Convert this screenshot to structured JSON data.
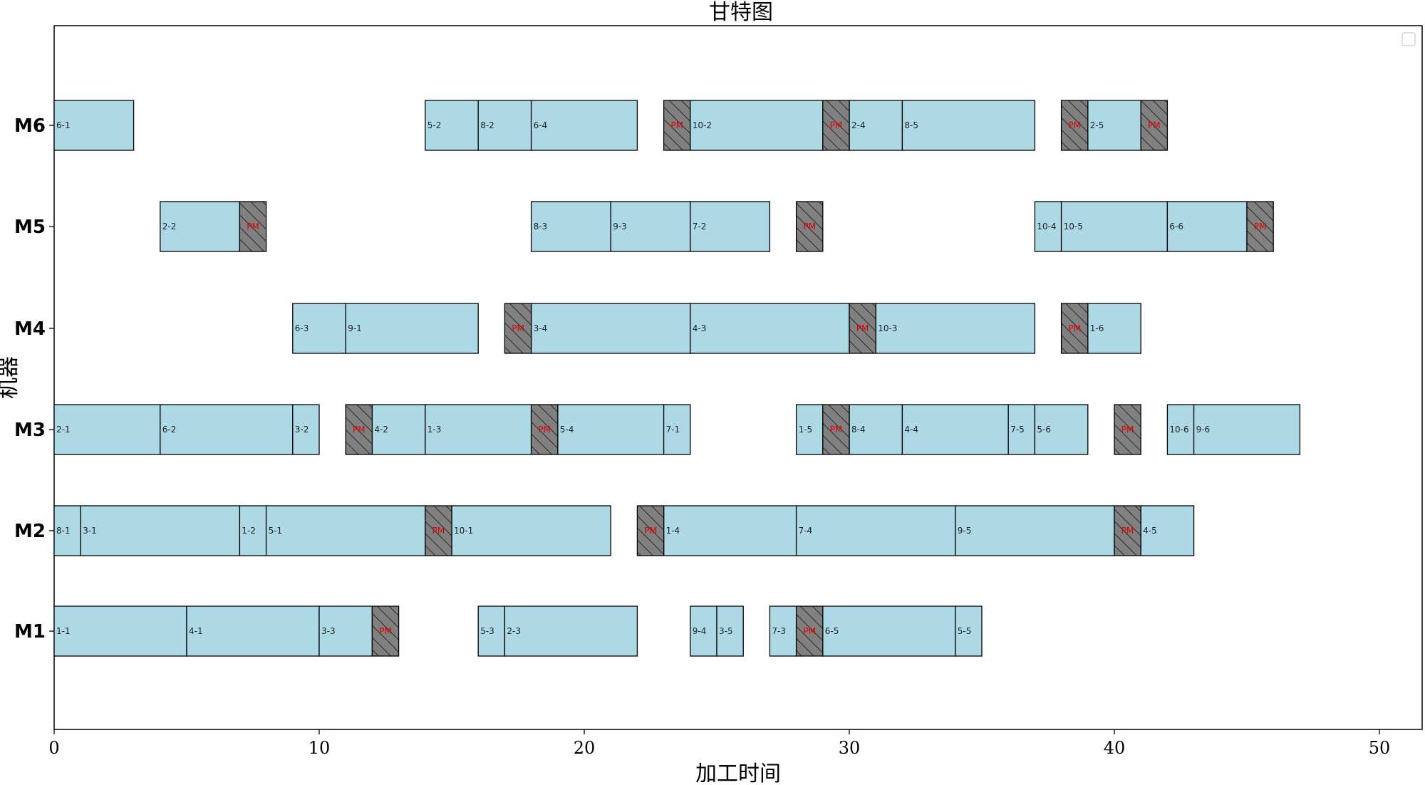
{
  "chart_data": {
    "type": "gantt",
    "title": "甘特图",
    "xlabel": "加工时间",
    "ylabel": "机器",
    "xlim": [
      0,
      52
    ],
    "xticks": [
      0,
      10,
      20,
      30,
      40,
      50
    ],
    "machines": [
      "M1",
      "M2",
      "M3",
      "M4",
      "M5",
      "M6"
    ],
    "legend": "top-right, empty",
    "colors": {
      "operation": "#add8e6",
      "maintenance": "#808080",
      "edge": "#000000",
      "maintenance_label": "#e00000"
    },
    "operations": [
      {
        "machine": "M1",
        "label": "1-1",
        "start": 0,
        "end": 5
      },
      {
        "machine": "M1",
        "label": "4-1",
        "start": 5,
        "end": 10
      },
      {
        "machine": "M1",
        "label": "3-3",
        "start": 10,
        "end": 12
      },
      {
        "machine": "M1",
        "label": "5-3",
        "start": 16,
        "end": 17
      },
      {
        "machine": "M1",
        "label": "2-3",
        "start": 17,
        "end": 22
      },
      {
        "machine": "M1",
        "label": "9-4",
        "start": 24,
        "end": 25
      },
      {
        "machine": "M1",
        "label": "3-5",
        "start": 25,
        "end": 26
      },
      {
        "machine": "M1",
        "label": "7-3",
        "start": 27,
        "end": 28
      },
      {
        "machine": "M1",
        "label": "6-5",
        "start": 29,
        "end": 34
      },
      {
        "machine": "M1",
        "label": "5-5",
        "start": 34,
        "end": 35
      },
      {
        "machine": "M2",
        "label": "8-1",
        "start": 0,
        "end": 1
      },
      {
        "machine": "M2",
        "label": "3-1",
        "start": 1,
        "end": 7
      },
      {
        "machine": "M2",
        "label": "1-2",
        "start": 7,
        "end": 8
      },
      {
        "machine": "M2",
        "label": "5-1",
        "start": 8,
        "end": 14
      },
      {
        "machine": "M2",
        "label": "10-1",
        "start": 15,
        "end": 21
      },
      {
        "machine": "M2",
        "label": "1-4",
        "start": 23,
        "end": 28
      },
      {
        "machine": "M2",
        "label": "7-4",
        "start": 28,
        "end": 34
      },
      {
        "machine": "M2",
        "label": "9-5",
        "start": 34,
        "end": 40
      },
      {
        "machine": "M2",
        "label": "4-5",
        "start": 41,
        "end": 43
      },
      {
        "machine": "M3",
        "label": "2-1",
        "start": 0,
        "end": 4
      },
      {
        "machine": "M3",
        "label": "6-2",
        "start": 4,
        "end": 9
      },
      {
        "machine": "M3",
        "label": "3-2",
        "start": 9,
        "end": 10
      },
      {
        "machine": "M3",
        "label": "4-2",
        "start": 12,
        "end": 14
      },
      {
        "machine": "M3",
        "label": "1-3",
        "start": 14,
        "end": 18
      },
      {
        "machine": "M3",
        "label": "5-4",
        "start": 19,
        "end": 23
      },
      {
        "machine": "M3",
        "label": "7-1",
        "start": 23,
        "end": 24
      },
      {
        "machine": "M3",
        "label": "1-5",
        "start": 28,
        "end": 29
      },
      {
        "machine": "M3",
        "label": "8-4",
        "start": 30,
        "end": 32
      },
      {
        "machine": "M3",
        "label": "4-4",
        "start": 32,
        "end": 36
      },
      {
        "machine": "M3",
        "label": "7-5",
        "start": 36,
        "end": 37
      },
      {
        "machine": "M3",
        "label": "5-6",
        "start": 37,
        "end": 39
      },
      {
        "machine": "M3",
        "label": "10-6",
        "start": 42,
        "end": 43
      },
      {
        "machine": "M3",
        "label": "9-6",
        "start": 43,
        "end": 47
      },
      {
        "machine": "M4",
        "label": "6-3",
        "start": 9,
        "end": 11
      },
      {
        "machine": "M4",
        "label": "9-1",
        "start": 11,
        "end": 16
      },
      {
        "machine": "M4",
        "label": "3-4",
        "start": 18,
        "end": 24
      },
      {
        "machine": "M4",
        "label": "4-3",
        "start": 24,
        "end": 30
      },
      {
        "machine": "M4",
        "label": "10-3",
        "start": 31,
        "end": 37
      },
      {
        "machine": "M4",
        "label": "1-6",
        "start": 39,
        "end": 41
      },
      {
        "machine": "M5",
        "label": "2-2",
        "start": 4,
        "end": 7
      },
      {
        "machine": "M5",
        "label": "8-3",
        "start": 18,
        "end": 21
      },
      {
        "machine": "M5",
        "label": "9-3",
        "start": 21,
        "end": 24
      },
      {
        "machine": "M5",
        "label": "7-2",
        "start": 24,
        "end": 27
      },
      {
        "machine": "M5",
        "label": "10-4",
        "start": 37,
        "end": 38
      },
      {
        "machine": "M5",
        "label": "10-5",
        "start": 38,
        "end": 42
      },
      {
        "machine": "M5",
        "label": "6-6",
        "start": 42,
        "end": 45
      },
      {
        "machine": "M6",
        "label": "6-1",
        "start": 0,
        "end": 3
      },
      {
        "machine": "M6",
        "label": "5-2",
        "start": 14,
        "end": 16
      },
      {
        "machine": "M6",
        "label": "8-2",
        "start": 16,
        "end": 18
      },
      {
        "machine": "M6",
        "label": "6-4",
        "start": 18,
        "end": 22
      },
      {
        "machine": "M6",
        "label": "10-2",
        "start": 24,
        "end": 29
      },
      {
        "machine": "M6",
        "label": "2-4",
        "start": 30,
        "end": 32
      },
      {
        "machine": "M6",
        "label": "8-5",
        "start": 32,
        "end": 37
      },
      {
        "machine": "M6",
        "label": "2-5",
        "start": 39,
        "end": 41
      }
    ],
    "maintenance": [
      {
        "machine": "M1",
        "start": 12,
        "end": 13,
        "label": "PM"
      },
      {
        "machine": "M1",
        "start": 28,
        "end": 29,
        "label": "PM"
      },
      {
        "machine": "M2",
        "start": 14,
        "end": 15,
        "label": "PM"
      },
      {
        "machine": "M2",
        "start": 22,
        "end": 23,
        "label": "PM"
      },
      {
        "machine": "M2",
        "start": 40,
        "end": 41,
        "label": "PM"
      },
      {
        "machine": "M3",
        "start": 11,
        "end": 12,
        "label": "PM"
      },
      {
        "machine": "M3",
        "start": 18,
        "end": 19,
        "label": "PM"
      },
      {
        "machine": "M3",
        "start": 29,
        "end": 30,
        "label": "PM"
      },
      {
        "machine": "M3",
        "start": 40,
        "end": 41,
        "label": "PM"
      },
      {
        "machine": "M4",
        "start": 17,
        "end": 18,
        "label": "PM"
      },
      {
        "machine": "M4",
        "start": 30,
        "end": 31,
        "label": "PM"
      },
      {
        "machine": "M4",
        "start": 38,
        "end": 39,
        "label": "PM"
      },
      {
        "machine": "M5",
        "start": 7,
        "end": 8,
        "label": "PM"
      },
      {
        "machine": "M5",
        "start": 28,
        "end": 29,
        "label": "PM"
      },
      {
        "machine": "M5",
        "start": 45,
        "end": 46,
        "label": "PM"
      },
      {
        "machine": "M6",
        "start": 23,
        "end": 24,
        "label": "PM"
      },
      {
        "machine": "M6",
        "start": 29,
        "end": 30,
        "label": "PM"
      },
      {
        "machine": "M6",
        "start": 38,
        "end": 39,
        "label": "PM"
      },
      {
        "machine": "M6",
        "start": 41,
        "end": 42,
        "label": "PM"
      }
    ]
  }
}
